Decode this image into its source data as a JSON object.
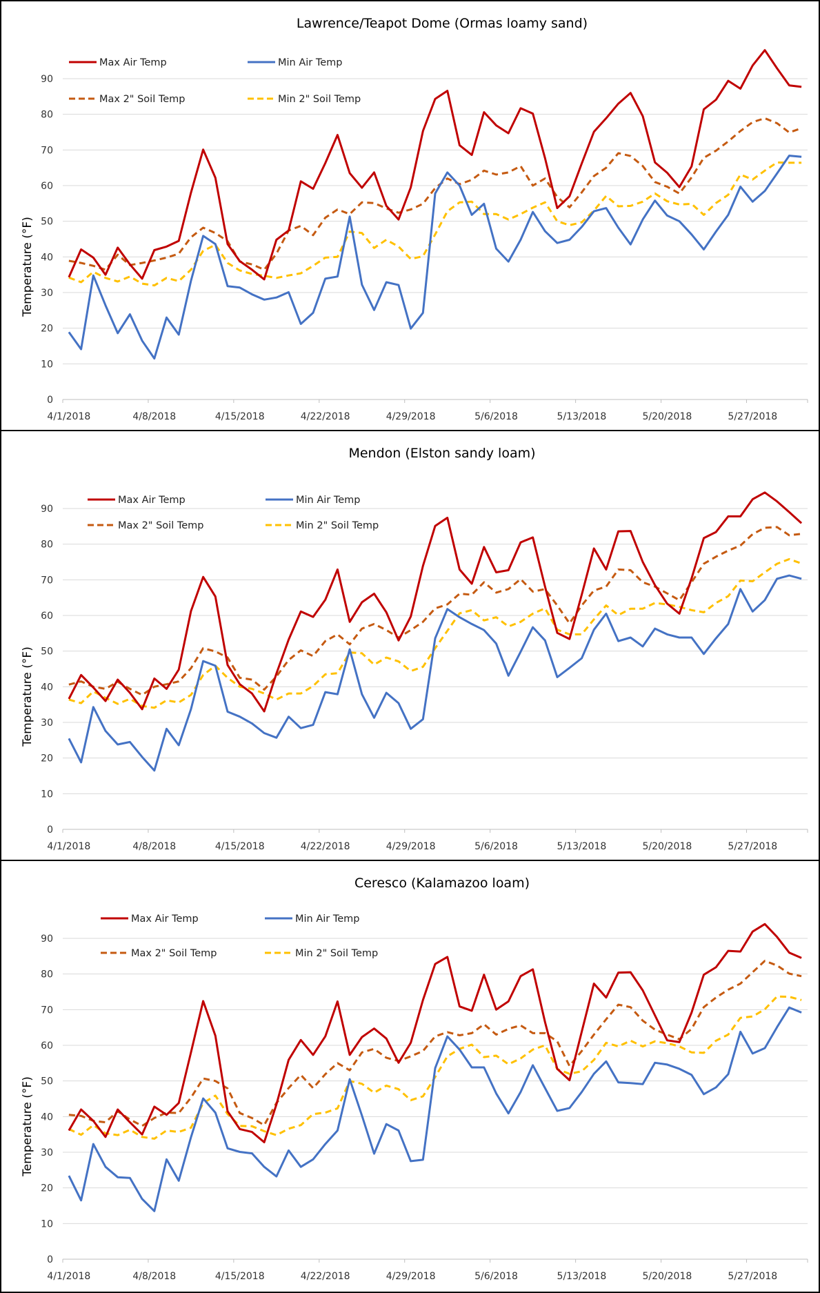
{
  "chart_data": [
    {
      "type": "line",
      "title": "Lawrence/Teapot Dome (Ormas loamy sand)",
      "ylabel": "Temperature (°F)",
      "xlabel": "",
      "ylim": [
        0,
        100
      ],
      "yticks": [
        "0",
        "10",
        "20",
        "30",
        "40",
        "50",
        "60",
        "70",
        "80",
        "90"
      ],
      "xticks": [
        "4/1/2018",
        "4/8/2018",
        "4/15/2018",
        "4/22/2018",
        "4/29/2018",
        "5/6/2018",
        "5/13/2018",
        "5/20/2018",
        "5/27/2018"
      ],
      "grid": true,
      "legend": "top-left",
      "series": [
        {
          "name": "Max Air Temp",
          "color": "#C00000",
          "dash": false,
          "values": [
            34.3,
            42.1,
            39.8,
            35,
            42.6,
            37.9,
            33.9,
            41.9,
            42.9,
            44.5,
            58,
            70.1,
            62.2,
            43.6,
            38.8,
            36.4,
            33.7,
            44.8,
            47.4,
            61.2,
            59.1,
            66.3,
            74.2,
            63.5,
            59.4,
            63.7,
            54.3,
            50.5,
            59.5,
            75.3,
            84.3,
            86.6,
            71.3,
            68.6,
            80.6,
            76.9,
            74.7,
            81.7,
            80.2,
            67.7,
            53.7,
            57,
            66.2,
            75.1,
            78.9,
            83,
            86,
            79.5,
            66.5,
            63.6,
            59.6,
            65.4,
            81.4,
            84.1,
            89.4,
            87.2,
            93.7,
            98,
            92.9,
            88.1,
            87.7
          ]
        },
        {
          "name": "Min Air Temp",
          "color": "#4472C4",
          "dash": false,
          "values": [
            18.9,
            14.1,
            34.8,
            26.4,
            18.6,
            23.9,
            16.5,
            11.5,
            23,
            18.2,
            33.3,
            45.9,
            43.6,
            31.8,
            31.4,
            29.5,
            28,
            28.6,
            30.1,
            21.2,
            24.3,
            33.9,
            34.5,
            51.3,
            32.2,
            25.1,
            32.9,
            32.1,
            19.9,
            24.3,
            57.8,
            63.7,
            60,
            51.8,
            54.9,
            42.3,
            38.7,
            44.8,
            52.6,
            47.2,
            43.9,
            44.8,
            48.4,
            52.8,
            53.7,
            48.2,
            43.5,
            50.5,
            55.8,
            51.6,
            50,
            46.3,
            42.1,
            47.1,
            51.8,
            59.7,
            55.5,
            58.5,
            63.4,
            68.4,
            68.1
          ]
        },
        {
          "name": "Max 2\" Soil Temp",
          "color": "#C55A11",
          "dash": true,
          "values": [
            38.9,
            38.3,
            37.5,
            36.4,
            40.6,
            37.7,
            38.3,
            39,
            39.8,
            40.9,
            45.5,
            48.2,
            46.7,
            44.4,
            38.7,
            37.9,
            36.4,
            40.9,
            47.4,
            48.7,
            46.1,
            51,
            53.3,
            52,
            55.3,
            55.1,
            53.6,
            52.4,
            53.3,
            54.9,
            59.3,
            62,
            60.4,
            61.6,
            64.2,
            63.1,
            63.7,
            65.5,
            60,
            62,
            56.8,
            53.9,
            58.1,
            62.7,
            65,
            69.1,
            68.3,
            65.5,
            61,
            59.7,
            57.8,
            62.3,
            67.8,
            69.8,
            72.4,
            75.3,
            77.8,
            78.9,
            77.5,
            74.9,
            76.1
          ]
        },
        {
          "name": "Min 2\" Soil Temp",
          "color": "#FFC000",
          "dash": true,
          "values": [
            34.2,
            32.9,
            35.8,
            34.1,
            33.1,
            34.5,
            32.5,
            32,
            34.1,
            33.2,
            36.4,
            41.7,
            43.4,
            38.3,
            36.2,
            35.2,
            34.7,
            34.1,
            34.8,
            35.4,
            37.5,
            39.8,
            40,
            47.1,
            46.7,
            42.5,
            44.8,
            42.9,
            39.4,
            40.2,
            46.3,
            52.8,
            55.3,
            55.5,
            52,
            52,
            50.5,
            52,
            53.8,
            55.3,
            50,
            48.9,
            49.7,
            53,
            57.1,
            54.2,
            54.3,
            55.5,
            57.8,
            55.6,
            54.7,
            54.9,
            51.8,
            55.1,
            57.4,
            63.1,
            61.7,
            64.2,
            66.5,
            66.4,
            66.4
          ]
        }
      ]
    },
    {
      "type": "line",
      "title": "Mendon (Elston sandy loam)",
      "ylabel": "Temperature (°F)",
      "xlabel": "",
      "ylim": [
        0,
        100
      ],
      "yticks": [
        "0",
        "10",
        "20",
        "30",
        "40",
        "50",
        "60",
        "70",
        "80",
        "90"
      ],
      "xticks": [
        "4/1/2018",
        "4/8/2018",
        "4/15/2018",
        "4/22/2018",
        "4/29/2018",
        "5/6/2018",
        "5/13/2018",
        "5/20/2018",
        "5/27/2018"
      ],
      "grid": true,
      "legend": "top-left",
      "series": [
        {
          "name": "Max Air Temp",
          "color": "#C00000",
          "dash": false,
          "values": [
            36.6,
            43.3,
            39.8,
            36,
            42,
            38.3,
            33.7,
            42.3,
            39.4,
            44.8,
            61.2,
            70.8,
            65.3,
            46.1,
            40.7,
            38.1,
            33.1,
            43.7,
            53.2,
            61.1,
            59.6,
            64.4,
            72.9,
            58.2,
            63.7,
            66.1,
            60.9,
            53,
            59.7,
            73.9,
            85.1,
            87.4,
            72.9,
            68.9,
            79.2,
            72.1,
            72.7,
            80.5,
            81.9,
            68.1,
            55.1,
            53.4,
            65.8,
            78.8,
            72.9,
            83.6,
            83.7,
            75,
            68.5,
            63.3,
            60.5,
            70.4,
            81.7,
            83.4,
            87.8,
            87.8,
            92.6,
            94.5,
            92,
            89,
            85.9
          ]
        },
        {
          "name": "Min Air Temp",
          "color": "#4472C4",
          "dash": false,
          "values": [
            25.5,
            18.8,
            34.3,
            27.6,
            23.8,
            24.5,
            20.3,
            16.5,
            28.2,
            23.6,
            33.7,
            47.2,
            45.9,
            33,
            31.6,
            29.7,
            27,
            25.7,
            31.6,
            28.4,
            29.3,
            38.5,
            37.9,
            50.5,
            37.9,
            31.3,
            38.3,
            35.4,
            28.2,
            30.9,
            53.6,
            61.8,
            59.5,
            57.6,
            55.9,
            52.1,
            43.1,
            49.8,
            56.7,
            53,
            42.7,
            45.3,
            48,
            56,
            60.5,
            52.8,
            53.8,
            51.3,
            56.3,
            54.7,
            53.8,
            53.8,
            49.2,
            53.6,
            57.6,
            67.4,
            61.1,
            64.3,
            70.3,
            71.2,
            70.3
          ]
        },
        {
          "name": "Max 2\" Soil Temp",
          "color": "#C55A11",
          "dash": true,
          "values": [
            40.6,
            41.5,
            40,
            39.4,
            41.4,
            39.4,
            37.7,
            40,
            40.7,
            41.5,
            45.2,
            50.8,
            49.9,
            48.2,
            42.5,
            42,
            39.2,
            42.9,
            47.5,
            50.2,
            48.6,
            52.8,
            54.7,
            51.9,
            56.3,
            57.6,
            55.9,
            53.8,
            55.9,
            58.2,
            62,
            63.1,
            66.1,
            65.8,
            69.3,
            66.4,
            67.4,
            70.2,
            66.7,
            67.4,
            62.8,
            57.8,
            62.8,
            67,
            68.1,
            72.9,
            72.7,
            69.3,
            68.1,
            66.2,
            64.3,
            69.3,
            74.5,
            76.5,
            78.2,
            79.6,
            82.8,
            84.6,
            84.8,
            82.5,
            82.9
          ]
        },
        {
          "name": "Min 2\" Soil Temp",
          "color": "#FFC000",
          "dash": true,
          "values": [
            36.4,
            35.4,
            38.7,
            36.9,
            35.2,
            36.6,
            34.6,
            34.1,
            36.2,
            35.6,
            37.7,
            43.3,
            45.9,
            42.5,
            40,
            39.4,
            38.1,
            36.4,
            38.1,
            38.1,
            40.2,
            43.5,
            43.8,
            49.6,
            49.4,
            46.2,
            48.2,
            47.1,
            44.4,
            45.6,
            50.8,
            55.7,
            60.6,
            61.5,
            58.6,
            59.5,
            56.9,
            58.2,
            60.5,
            62,
            56,
            54.7,
            54.7,
            58.9,
            62.8,
            60.1,
            61.9,
            61.9,
            63.5,
            63.1,
            62.4,
            61.5,
            60.9,
            63.5,
            65.4,
            69.8,
            69.6,
            72.1,
            74.5,
            75.8,
            74.6
          ]
        }
      ]
    },
    {
      "type": "line",
      "title": "Ceresco (Kalamazoo loam)",
      "ylabel": "Temperature (°F)",
      "xlabel": "",
      "ylim": [
        0,
        100
      ],
      "yticks": [
        "0",
        "10",
        "20",
        "30",
        "40",
        "50",
        "60",
        "70",
        "80",
        "90"
      ],
      "xticks": [
        "4/1/2018",
        "4/8/2018",
        "4/15/2018",
        "4/22/2018",
        "4/29/2018",
        "5/6/2018",
        "5/13/2018",
        "5/20/2018",
        "5/27/2018"
      ],
      "grid": true,
      "legend": "top-left",
      "series": [
        {
          "name": "Max Air Temp",
          "color": "#C00000",
          "dash": false,
          "values": [
            36.1,
            42,
            38.8,
            34.3,
            42,
            38.4,
            35,
            42.8,
            40.5,
            43.8,
            58,
            72.4,
            62.7,
            41.5,
            36.5,
            35.7,
            32.8,
            43.4,
            55.9,
            61.5,
            57.3,
            62.5,
            72.3,
            57.3,
            62.3,
            64.7,
            61.9,
            55.1,
            60.7,
            72.7,
            82.8,
            84.8,
            70.9,
            69.7,
            79.8,
            70,
            72.3,
            79.4,
            81.3,
            66.5,
            53.4,
            50.2,
            63.8,
            77.3,
            73.4,
            80.4,
            80.5,
            75.4,
            68.4,
            61.4,
            60.9,
            69.2,
            79.8,
            81.9,
            86.5,
            86.3,
            91.9,
            94,
            90.4,
            86,
            84.5
          ]
        },
        {
          "name": "Min Air Temp",
          "color": "#4472C4",
          "dash": false,
          "values": [
            23.4,
            16.5,
            32.3,
            25.9,
            23,
            22.8,
            16.9,
            13.5,
            28,
            22,
            34.2,
            45.1,
            41.1,
            31.1,
            30.1,
            29.7,
            25.9,
            23.2,
            30.5,
            25.9,
            28,
            32.3,
            36.1,
            50.5,
            40.3,
            29.6,
            37.9,
            36.1,
            27.5,
            27.9,
            53.6,
            62.5,
            58.8,
            53.8,
            53.8,
            46.5,
            40.9,
            46.9,
            54.4,
            48,
            41.6,
            42.4,
            46.9,
            52,
            55.5,
            49.6,
            49.4,
            49.1,
            55.1,
            54.6,
            53.4,
            51.7,
            46.3,
            48.2,
            51.9,
            63.8,
            57.7,
            59.2,
            65.1,
            70.6,
            69.2
          ]
        },
        {
          "name": "Max 2\" Soil Temp",
          "color": "#C55A11",
          "dash": true,
          "values": [
            40.5,
            40.2,
            38.8,
            38.4,
            41.5,
            39.2,
            37.4,
            39.6,
            41.1,
            41,
            45.3,
            50.7,
            50,
            47.9,
            41,
            39.6,
            37.6,
            43.8,
            48,
            51.7,
            48,
            51.9,
            55,
            53,
            58,
            59,
            56.5,
            55.6,
            56.9,
            58.4,
            62.5,
            63.7,
            62.8,
            63.4,
            65.9,
            63,
            64.6,
            65.6,
            63.4,
            63.4,
            61.1,
            54.2,
            58.4,
            63,
            67.3,
            71.4,
            70.7,
            66.9,
            64.4,
            63,
            61.7,
            64.6,
            70.7,
            73.4,
            75.6,
            77.3,
            80.5,
            83.7,
            82.4,
            80.1,
            79.4
          ]
        },
        {
          "name": "Min 2\" Soil Temp",
          "color": "#FFC000",
          "dash": true,
          "values": [
            36.5,
            34.9,
            37.6,
            35.3,
            34.8,
            36.3,
            34.3,
            33.8,
            36.1,
            35.7,
            36.9,
            43.8,
            45.9,
            40.7,
            37.4,
            37.3,
            35.9,
            34.8,
            36.6,
            37.6,
            40.7,
            41.1,
            42.3,
            50,
            49.2,
            46.7,
            48.7,
            47.7,
            44.6,
            45.7,
            51.1,
            56.9,
            59,
            60.2,
            56.7,
            57.1,
            54.7,
            56.3,
            58.8,
            60,
            53.3,
            52,
            52.7,
            55.9,
            60.7,
            59.7,
            61.3,
            59.7,
            61.1,
            60.6,
            59.7,
            58,
            57.9,
            61.3,
            63,
            67.7,
            68.1,
            70.1,
            73.7,
            73.6,
            72.7
          ]
        }
      ]
    }
  ]
}
